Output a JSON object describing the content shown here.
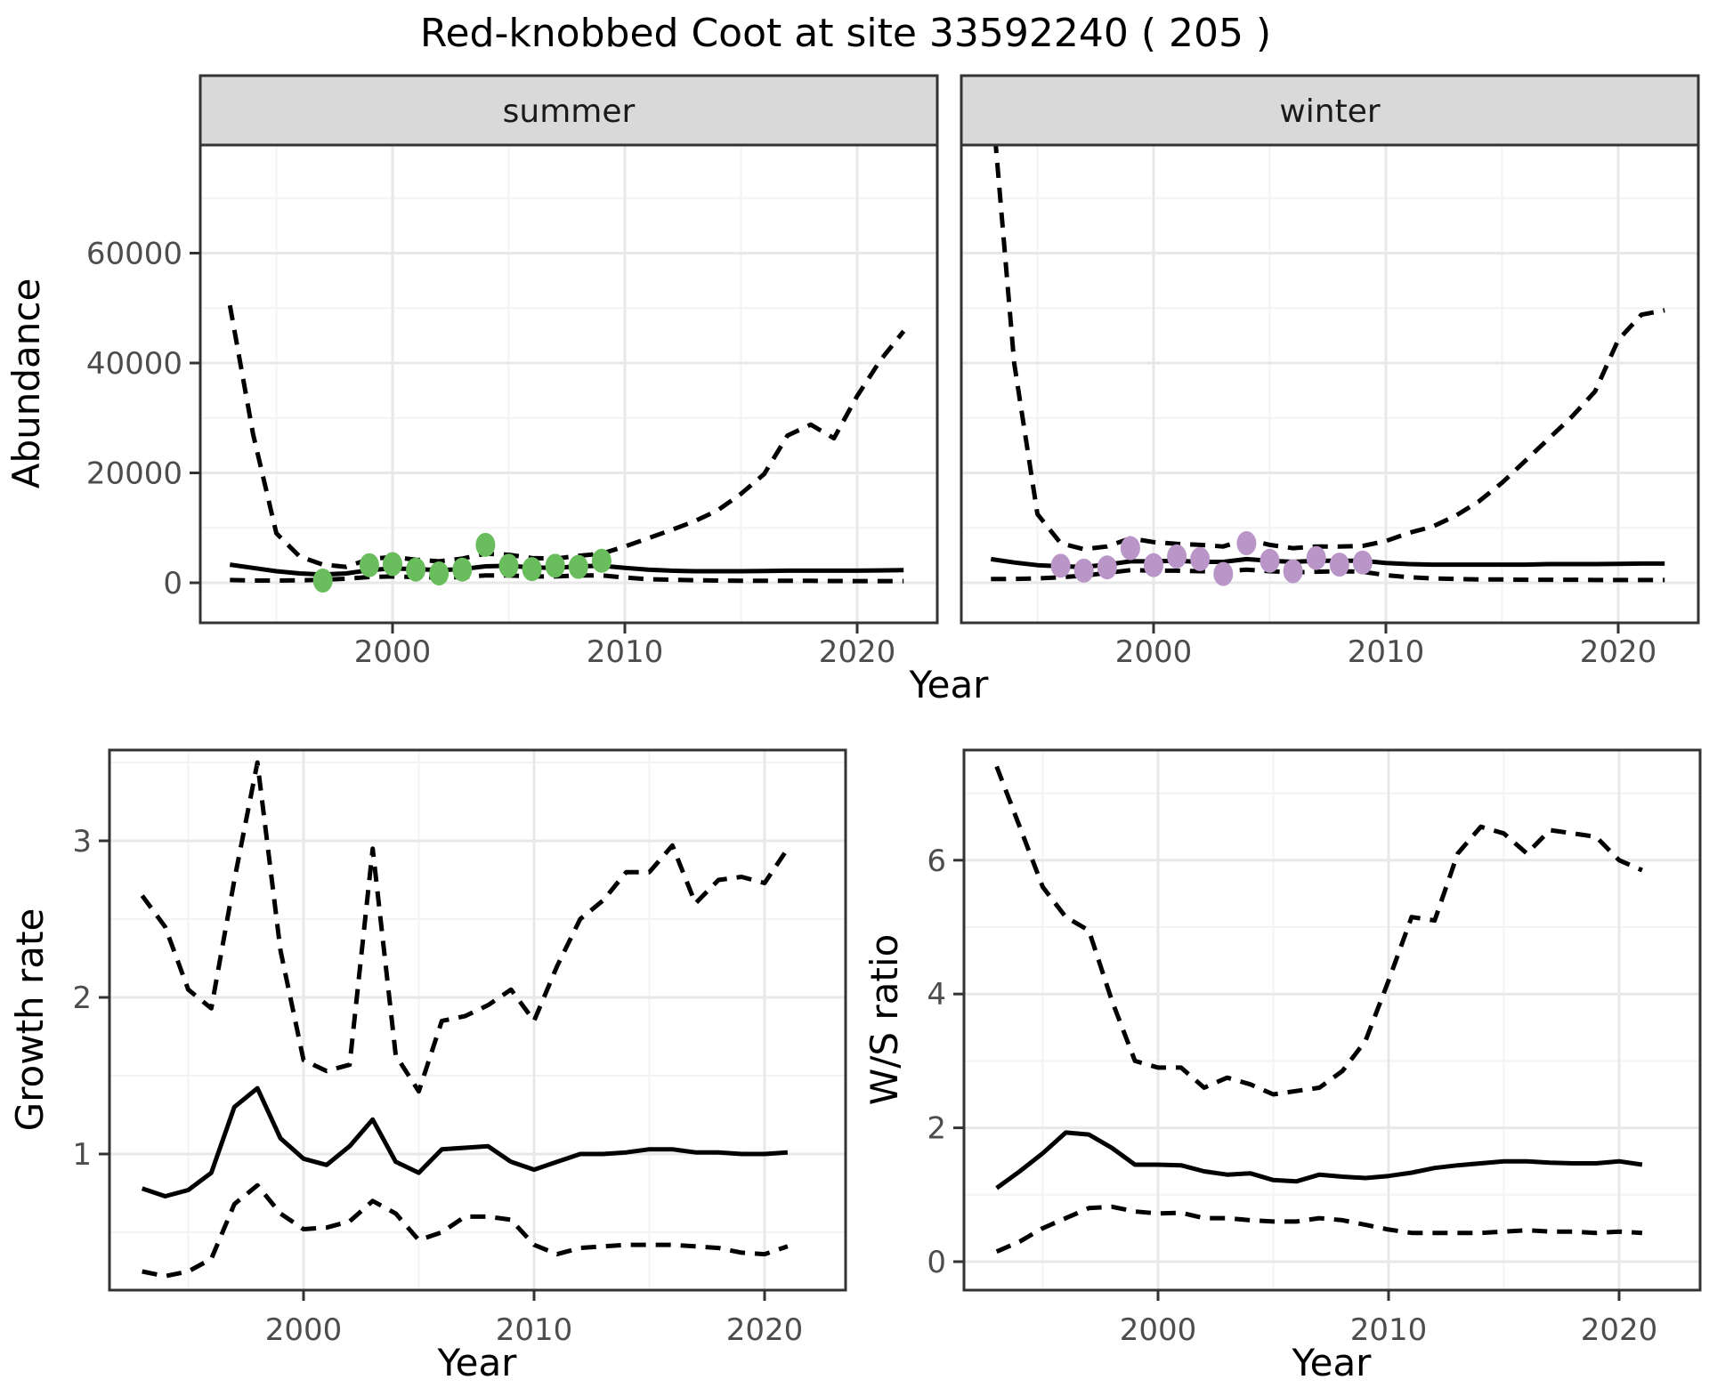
{
  "title": "Red-knobbed Coot at site 33592240 ( 205 )",
  "colors": {
    "summer_points": "#6abd5c",
    "winter_points": "#b995c8",
    "line": "#000000",
    "strip_bg": "#d9d9d9",
    "panel_border": "#333333",
    "grid_major": "#e8e8e8",
    "grid_minor": "#f3f3f3",
    "tick_label": "#4d4d4d"
  },
  "chart_data": [
    {
      "type": "line",
      "facet_label": "summer",
      "xlabel": "Year",
      "ylabel": "Abundance",
      "xlim": [
        1991.7,
        2023.4
      ],
      "ylim": [
        -7300,
        79700
      ],
      "xticks": {
        "values": [
          2000,
          2010,
          2020
        ],
        "labels": [
          "2000",
          "2010",
          "2020"
        ],
        "minor": [
          1995,
          2005,
          2015
        ]
      },
      "yticks": {
        "values": [
          0,
          20000,
          40000,
          60000
        ],
        "labels": [
          "0",
          "20000",
          "40000",
          "60000"
        ],
        "minor": [
          10000,
          30000,
          50000,
          70000
        ]
      },
      "x": [
        1993,
        1994,
        1995,
        1996,
        1997,
        1998,
        1999,
        2000,
        2001,
        2002,
        2003,
        2004,
        2005,
        2006,
        2007,
        2008,
        2009,
        2010,
        2011,
        2012,
        2013,
        2014,
        2015,
        2016,
        2017,
        2018,
        2019,
        2020,
        2021,
        2022
      ],
      "series": [
        {
          "name": "median",
          "style": "solid",
          "values": [
            3300,
            2700,
            2100,
            1700,
            1500,
            1700,
            2300,
            2600,
            2500,
            2300,
            2500,
            3000,
            3100,
            2800,
            2700,
            3000,
            3100,
            2700,
            2400,
            2200,
            2100,
            2100,
            2100,
            2150,
            2200,
            2200,
            2200,
            2200,
            2250,
            2300
          ]
        },
        {
          "name": "upper_95ci",
          "style": "dashed",
          "values": [
            50500,
            27000,
            9000,
            4800,
            3300,
            2900,
            4300,
            4700,
            4200,
            3900,
            4400,
            5300,
            5100,
            4500,
            4400,
            4900,
            5300,
            6600,
            8100,
            9600,
            11200,
            13200,
            16200,
            19800,
            26800,
            28800,
            26300,
            34000,
            40500,
            45800
          ]
        },
        {
          "name": "lower_95ci",
          "style": "dashed",
          "values": [
            500,
            400,
            400,
            450,
            550,
            750,
            1050,
            1150,
            1050,
            950,
            1050,
            1350,
            1350,
            1150,
            1150,
            1350,
            1350,
            950,
            650,
            550,
            450,
            400,
            380,
            360,
            350,
            350,
            320,
            300,
            300,
            300
          ]
        }
      ],
      "points": {
        "color": "#6abd5c",
        "x": [
          1997,
          1999,
          2000,
          2001,
          2002,
          2003,
          2004,
          2005,
          2006,
          2007,
          2008,
          2009
        ],
        "values": [
          400,
          3200,
          3400,
          2400,
          1700,
          2400,
          6900,
          3100,
          2500,
          3100,
          2900,
          4000
        ]
      }
    },
    {
      "type": "line",
      "facet_label": "winter",
      "xlabel": "Year",
      "ylabel": "Abundance",
      "xlim": [
        1991.7,
        2023.4
      ],
      "ylim": [
        -7300,
        79700
      ],
      "xticks": {
        "values": [
          2000,
          2010,
          2020
        ],
        "labels": [
          "2000",
          "2010",
          "2020"
        ],
        "minor": [
          1995,
          2005,
          2015
        ]
      },
      "yticks": {
        "values": [
          0,
          20000,
          40000,
          60000
        ],
        "labels": [
          "0",
          "20000",
          "40000",
          "60000"
        ],
        "minor": [
          10000,
          30000,
          50000,
          70000
        ]
      },
      "x": [
        1993,
        1994,
        1995,
        1996,
        1997,
        1998,
        1999,
        2000,
        2001,
        2002,
        2003,
        2004,
        2005,
        2006,
        2007,
        2008,
        2009,
        2010,
        2011,
        2012,
        2013,
        2014,
        2015,
        2016,
        2017,
        2018,
        2019,
        2020,
        2021,
        2022
      ],
      "series": [
        {
          "name": "median",
          "style": "solid",
          "values": [
            4300,
            3700,
            3200,
            3000,
            2900,
            3300,
            3900,
            3900,
            4000,
            3800,
            3800,
            4300,
            4000,
            3800,
            4000,
            4000,
            4000,
            3600,
            3400,
            3300,
            3300,
            3300,
            3300,
            3300,
            3400,
            3400,
            3400,
            3450,
            3500,
            3500
          ]
        },
        {
          "name": "upper_95ci",
          "style": "dashed",
          "values": [
            90000,
            40000,
            12500,
            7200,
            6100,
            6600,
            8100,
            7400,
            7100,
            6900,
            6600,
            7900,
            6900,
            6300,
            6600,
            6600,
            6700,
            7600,
            9100,
            10200,
            12200,
            14800,
            18200,
            22200,
            26200,
            30200,
            34800,
            44200,
            48800,
            49600
          ]
        },
        {
          "name": "lower_95ci",
          "style": "dashed",
          "values": [
            700,
            700,
            800,
            1000,
            1300,
            1800,
            2300,
            2200,
            2200,
            2100,
            2000,
            2400,
            2100,
            1900,
            2000,
            2100,
            2000,
            1400,
            1000,
            800,
            700,
            600,
            600,
            550,
            550,
            550,
            500,
            500,
            500,
            500
          ]
        }
      ],
      "points": {
        "color": "#b995c8",
        "x": [
          1996,
          1997,
          1998,
          1999,
          2000,
          2001,
          2002,
          2003,
          2004,
          2005,
          2006,
          2007,
          2008,
          2009
        ],
        "values": [
          3100,
          2200,
          2800,
          6300,
          3200,
          4800,
          4300,
          1600,
          7200,
          4000,
          2100,
          4500,
          3300,
          3700
        ]
      }
    },
    {
      "type": "line",
      "facet_label": "",
      "xlabel": "Year",
      "ylabel": "Growth rate",
      "xlim": [
        1991.6,
        2023.5
      ],
      "ylim": [
        0.13,
        3.58
      ],
      "xticks": {
        "values": [
          2000,
          2010,
          2020
        ],
        "labels": [
          "2000",
          "2010",
          "2020"
        ],
        "minor": [
          1995,
          2005,
          2015
        ]
      },
      "yticks": {
        "values": [
          1,
          2,
          3
        ],
        "labels": [
          "1",
          "2",
          "3"
        ],
        "minor": [
          0.5,
          1.5,
          2.5,
          3.5
        ]
      },
      "x": [
        1993,
        1994,
        1995,
        1996,
        1997,
        1998,
        1999,
        2000,
        2001,
        2002,
        2003,
        2004,
        2005,
        2006,
        2007,
        2008,
        2009,
        2010,
        2011,
        2012,
        2013,
        2014,
        2015,
        2016,
        2017,
        2018,
        2019,
        2020,
        2021
      ],
      "series": [
        {
          "name": "median",
          "style": "solid",
          "values": [
            0.78,
            0.73,
            0.77,
            0.88,
            1.3,
            1.42,
            1.1,
            0.97,
            0.93,
            1.05,
            1.22,
            0.95,
            0.88,
            1.03,
            1.04,
            1.05,
            0.95,
            0.9,
            0.95,
            1.0,
            1.0,
            1.01,
            1.03,
            1.03,
            1.01,
            1.01,
            1.0,
            1.0,
            1.01
          ]
        },
        {
          "name": "upper_95ci",
          "style": "dashed",
          "values": [
            2.65,
            2.45,
            2.05,
            1.93,
            2.75,
            3.5,
            2.3,
            1.6,
            1.53,
            1.57,
            2.95,
            1.63,
            1.4,
            1.85,
            1.88,
            1.95,
            2.05,
            1.85,
            2.2,
            2.5,
            2.62,
            2.8,
            2.8,
            2.97,
            2.6,
            2.75,
            2.77,
            2.73,
            2.95
          ]
        },
        {
          "name": "lower_95ci",
          "style": "dashed",
          "values": [
            0.25,
            0.22,
            0.25,
            0.33,
            0.68,
            0.8,
            0.62,
            0.52,
            0.53,
            0.57,
            0.7,
            0.62,
            0.45,
            0.5,
            0.6,
            0.6,
            0.58,
            0.42,
            0.36,
            0.4,
            0.41,
            0.42,
            0.42,
            0.42,
            0.41,
            0.4,
            0.37,
            0.36,
            0.41
          ]
        }
      ],
      "points": null
    },
    {
      "type": "line",
      "facet_label": "",
      "xlabel": "Year",
      "ylabel": "W/S ratio",
      "xlim": [
        1991.6,
        2023.5
      ],
      "ylim": [
        -0.43,
        7.65
      ],
      "xticks": {
        "values": [
          2000,
          2010,
          2020
        ],
        "labels": [
          "2000",
          "2010",
          "2020"
        ],
        "minor": [
          1995,
          2005,
          2015
        ]
      },
      "yticks": {
        "values": [
          0,
          2,
          4,
          6
        ],
        "labels": [
          "0",
          "2",
          "4",
          "6"
        ],
        "minor": [
          1,
          3,
          5,
          7
        ]
      },
      "x": [
        1993,
        1994,
        1995,
        1996,
        1997,
        1998,
        1999,
        2000,
        2001,
        2002,
        2003,
        2004,
        2005,
        2006,
        2007,
        2008,
        2009,
        2010,
        2011,
        2012,
        2013,
        2014,
        2015,
        2016,
        2017,
        2018,
        2019,
        2020,
        2021
      ],
      "series": [
        {
          "name": "median",
          "style": "solid",
          "values": [
            1.1,
            1.35,
            1.62,
            1.93,
            1.9,
            1.7,
            1.45,
            1.45,
            1.44,
            1.35,
            1.3,
            1.32,
            1.22,
            1.2,
            1.3,
            1.27,
            1.25,
            1.28,
            1.33,
            1.4,
            1.44,
            1.47,
            1.5,
            1.5,
            1.48,
            1.47,
            1.47,
            1.5,
            1.45
          ]
        },
        {
          "name": "upper_95ci",
          "style": "dashed",
          "values": [
            7.4,
            6.5,
            5.6,
            5.15,
            4.95,
            3.9,
            3.0,
            2.9,
            2.9,
            2.6,
            2.75,
            2.65,
            2.5,
            2.55,
            2.6,
            2.85,
            3.3,
            4.2,
            5.15,
            5.1,
            6.1,
            6.5,
            6.4,
            6.1,
            6.45,
            6.4,
            6.35,
            6.0,
            5.85
          ]
        },
        {
          "name": "lower_95ci",
          "style": "dashed",
          "values": [
            0.15,
            0.3,
            0.5,
            0.65,
            0.8,
            0.82,
            0.75,
            0.72,
            0.73,
            0.65,
            0.65,
            0.62,
            0.6,
            0.6,
            0.65,
            0.62,
            0.55,
            0.48,
            0.43,
            0.43,
            0.43,
            0.43,
            0.45,
            0.47,
            0.45,
            0.45,
            0.43,
            0.45,
            0.43
          ]
        }
      ],
      "points": null
    }
  ]
}
